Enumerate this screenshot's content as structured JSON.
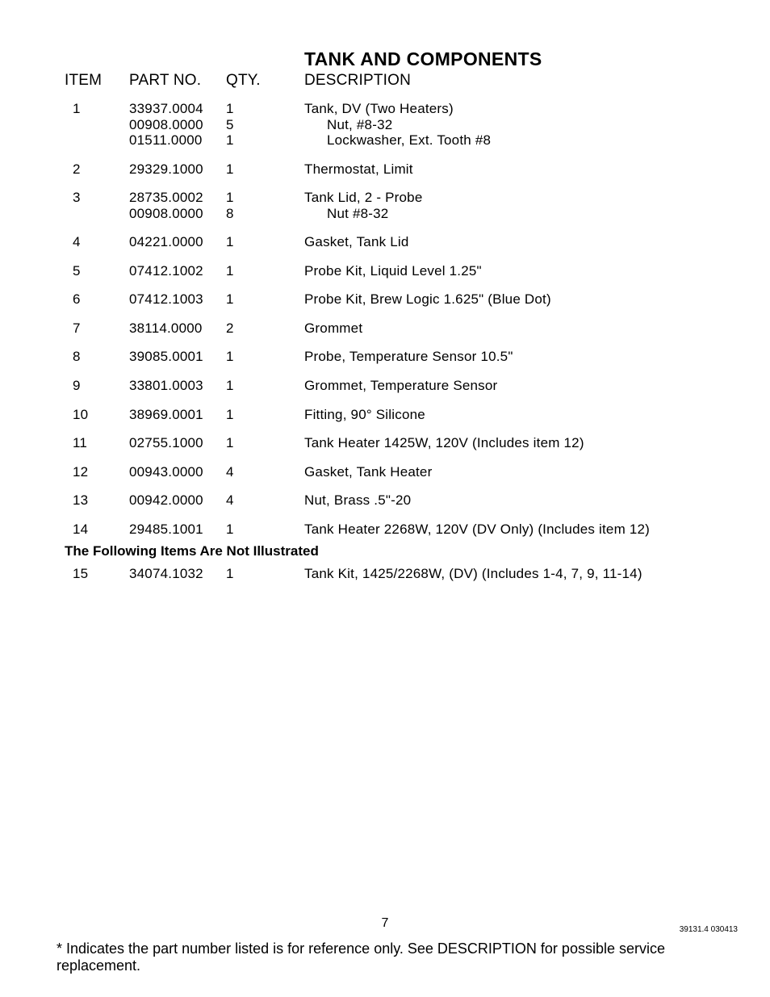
{
  "title": "TANK AND COMPONENTS",
  "columns": {
    "item": "ITEM",
    "part": "PART NO.",
    "qty": "QTY.",
    "desc": "DESCRIPTION"
  },
  "rows": [
    {
      "item": "1",
      "parts": [
        "33937.0004",
        "00908.0000",
        "01511.0000"
      ],
      "qtys": [
        "1",
        "5",
        "1"
      ],
      "descs": [
        "Tank, DV (Two Heaters)",
        "Nut, #8-32",
        "Lockwasher, Ext. Tooth #8"
      ],
      "indent": [
        0,
        1,
        1
      ]
    },
    {
      "item": "2",
      "parts": [
        "29329.1000"
      ],
      "qtys": [
        "1"
      ],
      "descs": [
        "Thermostat, Limit"
      ],
      "indent": [
        0
      ]
    },
    {
      "item": "3",
      "parts": [
        "28735.0002",
        "00908.0000"
      ],
      "qtys": [
        "1",
        "8"
      ],
      "descs": [
        "Tank Lid, 2 - Probe",
        "Nut #8-32"
      ],
      "indent": [
        0,
        1
      ]
    },
    {
      "item": "4",
      "parts": [
        "04221.0000"
      ],
      "qtys": [
        "1"
      ],
      "descs": [
        "Gasket, Tank Lid"
      ],
      "indent": [
        0
      ]
    },
    {
      "item": "5",
      "parts": [
        "07412.1002"
      ],
      "qtys": [
        "1"
      ],
      "descs": [
        "Probe Kit, Liquid Level  1.25\""
      ],
      "indent": [
        0
      ]
    },
    {
      "item": "6",
      "parts": [
        "07412.1003"
      ],
      "qtys": [
        "1"
      ],
      "descs": [
        "Probe Kit, Brew Logic  1.625\" (Blue Dot)"
      ],
      "indent": [
        0
      ]
    },
    {
      "item": "7",
      "parts": [
        "38114.0000"
      ],
      "qtys": [
        "2"
      ],
      "descs": [
        "Grommet"
      ],
      "indent": [
        0
      ]
    },
    {
      "item": "8",
      "parts": [
        "39085.0001"
      ],
      "qtys": [
        "1"
      ],
      "descs": [
        "Probe, Temperature Sensor  10.5\""
      ],
      "indent": [
        0
      ]
    },
    {
      "item": "9",
      "parts": [
        "33801.0003"
      ],
      "qtys": [
        "1"
      ],
      "descs": [
        "Grommet, Temperature Sensor"
      ],
      "indent": [
        0
      ]
    },
    {
      "item": "10",
      "parts": [
        "38969.0001"
      ],
      "qtys": [
        "1"
      ],
      "descs": [
        "Fitting, 90° Silicone"
      ],
      "indent": [
        0
      ]
    },
    {
      "item": "11",
      "parts": [
        "02755.1000"
      ],
      "qtys": [
        "1"
      ],
      "descs": [
        "Tank Heater 1425W, 120V (Includes item 12)"
      ],
      "indent": [
        0
      ]
    },
    {
      "item": "12",
      "parts": [
        "00943.0000"
      ],
      "qtys": [
        "4"
      ],
      "descs": [
        "Gasket, Tank Heater"
      ],
      "indent": [
        0
      ]
    },
    {
      "item": "13",
      "parts": [
        "00942.0000"
      ],
      "qtys": [
        "4"
      ],
      "descs": [
        "Nut, Brass .5\"-20"
      ],
      "indent": [
        0
      ]
    },
    {
      "item": "14",
      "parts": [
        "29485.1001"
      ],
      "qtys": [
        "1"
      ],
      "descs": [
        "Tank Heater 2268W, 120V (DV Only) (Includes item 12)"
      ],
      "indent": [
        0
      ]
    }
  ],
  "subheading": "The Following Items Are Not Illustrated",
  "rows2": [
    {
      "item": "15",
      "parts": [
        "34074.1032"
      ],
      "qtys": [
        "1"
      ],
      "descs": [
        "Tank Kit, 1425/2268W, (DV) (Includes 1-4, 7, 9, 11-14)"
      ],
      "indent": [
        0
      ]
    }
  ],
  "pagenum": "7",
  "docid": "39131.4 030413",
  "footnote": "*  Indicates the part number listed is for reference only. See DESCRIPTION for possible service replacement."
}
